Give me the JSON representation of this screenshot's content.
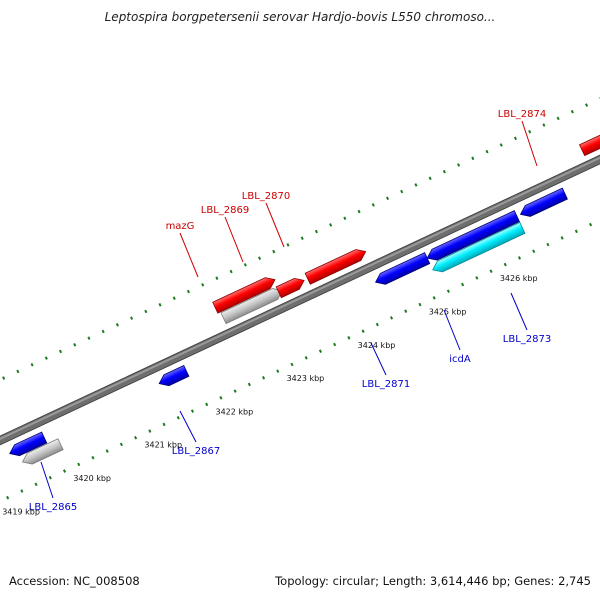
{
  "title": "Leptospira borgpetersenii serovar Hardjo-bovis L550 chromoso...",
  "footer": {
    "accession": "Accession: NC_008508",
    "summary": "Topology: circular; Length: 3,614,446 bp; Genes: 2,745"
  },
  "colors": {
    "forward_gene": "#ff0000",
    "reverse_gene": "#0000ff",
    "pseudo_gene": "#c0c0c0",
    "cyan_gene": "#00e5ff",
    "backbone": "#666666",
    "tick": "#1e7a1e",
    "forward_label": "#cc0000",
    "reverse_label": "#0000cc"
  },
  "scale": {
    "unit": "kbp",
    "major_ticks": [
      3419,
      3420,
      3421,
      3422,
      3423,
      3424,
      3425,
      3426
    ]
  },
  "genes": [
    {
      "id": "LBL_2865",
      "label": "LBL_2865",
      "strand": "reverse",
      "color": "reverse"
    },
    {
      "id": "pseudo_a",
      "label": "",
      "strand": "reverse",
      "color": "pseudo"
    },
    {
      "id": "rev_small",
      "label": "",
      "strand": "reverse",
      "color": "reverse"
    },
    {
      "id": "LBL_2867",
      "label": "LBL_2867",
      "strand": "reverse",
      "color": "reverse"
    },
    {
      "id": "mazG",
      "label": "mazG",
      "strand": "forward",
      "color": "forward"
    },
    {
      "id": "pseudo_b",
      "label": "",
      "strand": "forward",
      "color": "pseudo"
    },
    {
      "id": "LBL_2869",
      "label": "LBL_2869",
      "strand": "forward",
      "color": "forward"
    },
    {
      "id": "LBL_2870",
      "label": "LBL_2870",
      "strand": "forward",
      "color": "forward"
    },
    {
      "id": "LBL_2871",
      "label": "LBL_2871",
      "strand": "reverse",
      "color": "reverse"
    },
    {
      "id": "rev_long",
      "label": "",
      "strand": "reverse",
      "color": "reverse"
    },
    {
      "id": "icdA",
      "label": "icdA",
      "strand": "reverse",
      "color": "cyan"
    },
    {
      "id": "LBL_2873",
      "label": "LBL_2873",
      "strand": "reverse",
      "color": "reverse"
    },
    {
      "id": "LBL_2874",
      "label": "LBL_2874",
      "strand": "forward",
      "color": "forward"
    },
    {
      "id": "fwd_edge",
      "label": "",
      "strand": "forward",
      "color": "forward"
    }
  ]
}
